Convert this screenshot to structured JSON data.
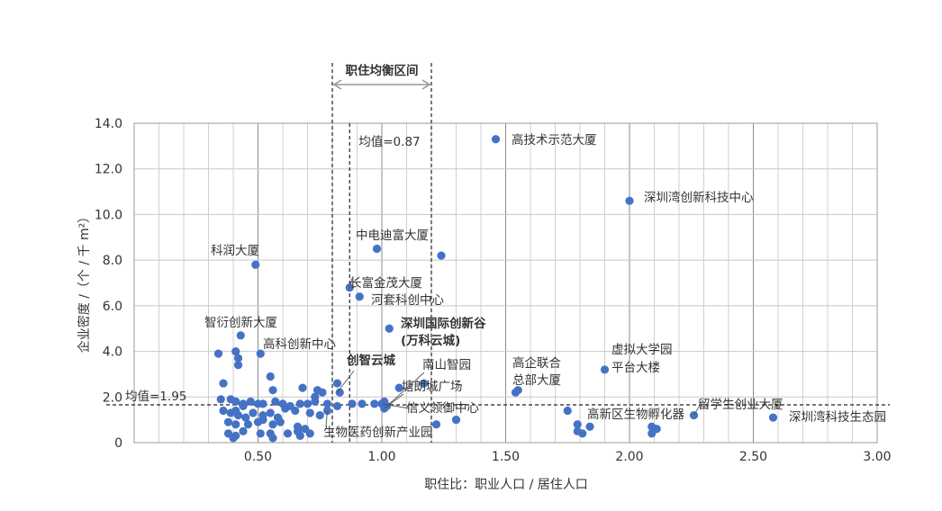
{
  "chart_data": {
    "type": "scatter",
    "title": "",
    "xlabel": "职住比：职业人口 / 居住人口",
    "ylabel": "企业密度 /（个 / 千 m²）",
    "xlim": [
      0,
      3.0
    ],
    "ylim": [
      0,
      14.0
    ],
    "x_ticks": [
      "0.50",
      "1.00",
      "1.50",
      "2.00",
      "2.50",
      "3.00"
    ],
    "y_ticks": [
      "0",
      "2.0",
      "4.0",
      "6.0",
      "8.0",
      "10.0",
      "12.0",
      "14.0"
    ],
    "grid": true,
    "point_color": "#4472c4",
    "band": {
      "title": "职住均衡区间",
      "x_range": [
        0.8,
        1.2
      ]
    },
    "x_mean": {
      "value": 0.87,
      "label": "均值=0.87"
    },
    "y_mean": {
      "value": 1.95,
      "label": "均值=1.95"
    },
    "points": [
      [
        1.46,
        13.3
      ],
      [
        2.0,
        10.6
      ],
      [
        0.98,
        8.5
      ],
      [
        1.24,
        8.2
      ],
      [
        0.49,
        7.8
      ],
      [
        0.87,
        6.8
      ],
      [
        0.91,
        6.4
      ],
      [
        1.03,
        5.0
      ],
      [
        0.43,
        4.7
      ],
      [
        0.34,
        3.9
      ],
      [
        0.41,
        4.0
      ],
      [
        0.42,
        3.7
      ],
      [
        0.42,
        3.4
      ],
      [
        0.51,
        3.9
      ],
      [
        0.55,
        2.9
      ],
      [
        0.36,
        2.6
      ],
      [
        0.56,
        2.3
      ],
      [
        0.68,
        2.4
      ],
      [
        0.73,
        2.0
      ],
      [
        0.74,
        2.3
      ],
      [
        0.76,
        2.2
      ],
      [
        0.82,
        2.6
      ],
      [
        0.83,
        2.2
      ],
      [
        1.17,
        2.6
      ],
      [
        1.07,
        2.4
      ],
      [
        1.55,
        2.3
      ],
      [
        1.54,
        2.2
      ],
      [
        1.9,
        3.2
      ],
      [
        0.35,
        1.9
      ],
      [
        0.39,
        1.9
      ],
      [
        0.41,
        1.8
      ],
      [
        0.44,
        1.7
      ],
      [
        0.47,
        1.8
      ],
      [
        0.5,
        1.7
      ],
      [
        0.52,
        1.7
      ],
      [
        0.57,
        1.8
      ],
      [
        0.6,
        1.7
      ],
      [
        0.63,
        1.6
      ],
      [
        0.67,
        1.7
      ],
      [
        0.7,
        1.7
      ],
      [
        0.73,
        1.8
      ],
      [
        0.78,
        1.7
      ],
      [
        0.82,
        1.6
      ],
      [
        0.88,
        1.7
      ],
      [
        0.92,
        1.7
      ],
      [
        1.01,
        1.8
      ],
      [
        1.0,
        1.7
      ],
      [
        0.36,
        1.4
      ],
      [
        0.39,
        1.3
      ],
      [
        0.42,
        1.2
      ],
      [
        0.45,
        1.1
      ],
      [
        0.48,
        1.3
      ],
      [
        0.52,
        1.2
      ],
      [
        0.55,
        1.3
      ],
      [
        0.58,
        1.1
      ],
      [
        0.61,
        1.5
      ],
      [
        0.65,
        1.4
      ],
      [
        0.71,
        1.3
      ],
      [
        0.75,
        1.2
      ],
      [
        0.78,
        1.4
      ],
      [
        0.41,
        1.4
      ],
      [
        0.44,
        1.6
      ],
      [
        0.38,
        0.9
      ],
      [
        0.41,
        0.8
      ],
      [
        0.46,
        0.8
      ],
      [
        0.5,
        0.9
      ],
      [
        0.52,
        1.0
      ],
      [
        0.56,
        0.8
      ],
      [
        0.59,
        0.9
      ],
      [
        0.66,
        0.7
      ],
      [
        0.69,
        0.6
      ],
      [
        0.38,
        0.4
      ],
      [
        0.41,
        0.3
      ],
      [
        0.44,
        0.5
      ],
      [
        0.51,
        0.4
      ],
      [
        0.55,
        0.4
      ],
      [
        0.62,
        0.4
      ],
      [
        0.66,
        0.5
      ],
      [
        0.71,
        0.4
      ],
      [
        0.4,
        0.2
      ],
      [
        0.56,
        0.2
      ],
      [
        0.67,
        0.3
      ],
      [
        0.97,
        1.7
      ],
      [
        1.01,
        1.5
      ],
      [
        1.02,
        1.6
      ],
      [
        1.22,
        0.8
      ],
      [
        1.3,
        1.0
      ],
      [
        1.75,
        1.4
      ],
      [
        1.79,
        0.8
      ],
      [
        1.79,
        0.5
      ],
      [
        1.81,
        0.4
      ],
      [
        1.84,
        0.7
      ],
      [
        2.09,
        0.7
      ],
      [
        2.09,
        0.4
      ],
      [
        2.11,
        0.6
      ],
      [
        2.26,
        1.2
      ],
      [
        2.58,
        1.1
      ]
    ],
    "annotations": [
      {
        "text": "高技术示范大厦"
      },
      {
        "text": "深圳湾创新科技中心"
      },
      {
        "text": "中电迪富大厦"
      },
      {
        "text": "科润大厦"
      },
      {
        "text": "长富金茂大厦"
      },
      {
        "text": "河套科创中心"
      },
      {
        "text": "深圳国际创新谷",
        "bold": true
      },
      {
        "text": "(万科云城)",
        "bold": true
      },
      {
        "text": "智衍创新大厦"
      },
      {
        "text": "高科创新中心"
      },
      {
        "text": "创智云城",
        "bold": true
      },
      {
        "text": "南山智园"
      },
      {
        "text": "塘朗城广场"
      },
      {
        "text": "信义领御中心"
      },
      {
        "text": "生物医药创新产业园"
      },
      {
        "text": "高企联合"
      },
      {
        "text": "总部大厦"
      },
      {
        "text": "虚拟大学园"
      },
      {
        "text": "平台大楼"
      },
      {
        "text": "高新区生物孵化器"
      },
      {
        "text": "留学生创业大厦"
      },
      {
        "text": "深圳湾科技生态园"
      }
    ]
  }
}
